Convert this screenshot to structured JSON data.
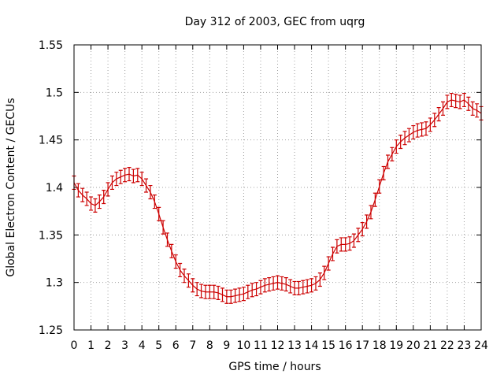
{
  "chart_data": {
    "type": "line",
    "title": "Day 312 of 2003, GEC from uqrg",
    "xlabel": "GPS time / hours",
    "ylabel": "Global Electron Content / GECUs",
    "xlim": [
      0,
      24
    ],
    "ylim": [
      1.25,
      1.55
    ],
    "x_ticks": [
      "0",
      "1",
      "2",
      "3",
      "4",
      "5",
      "6",
      "7",
      "8",
      "9",
      "10",
      "11",
      "12",
      "13",
      "14",
      "15",
      "16",
      "17",
      "18",
      "19",
      "20",
      "21",
      "22",
      "23",
      "24"
    ],
    "y_ticks": [
      "1.25",
      "1.3",
      "1.35",
      "1.4",
      "1.45",
      "1.5",
      "1.55"
    ],
    "grid": true,
    "series_color": "#cc0000",
    "error_half_width": 0.007,
    "series": [
      {
        "x": [
          0,
          0.25,
          0.5,
          0.75,
          1,
          1.25,
          1.5,
          1.75,
          2,
          2.25,
          2.5,
          2.75,
          3,
          3.25,
          3.5,
          3.75,
          4,
          4.25,
          4.5,
          4.75,
          5,
          5.25,
          5.5,
          5.75,
          6,
          6.25,
          6.5,
          6.75,
          7,
          7.25,
          7.5,
          7.75,
          8,
          8.25,
          8.5,
          8.75,
          9,
          9.25,
          9.5,
          9.75,
          10,
          10.25,
          10.5,
          10.75,
          11,
          11.25,
          11.5,
          11.75,
          12,
          12.25,
          12.5,
          12.75,
          13,
          13.25,
          13.5,
          13.75,
          14,
          14.25,
          14.5,
          14.75,
          15,
          15.25,
          15.5,
          15.75,
          16,
          16.25,
          16.5,
          16.75,
          17,
          17.25,
          17.5,
          17.75,
          18,
          18.25,
          18.5,
          18.75,
          19,
          19.25,
          19.5,
          19.75,
          20,
          20.25,
          20.5,
          20.75,
          21,
          21.25,
          21.5,
          21.75,
          22,
          22.25,
          22.5,
          22.75,
          23,
          23.25,
          23.5,
          23.75,
          24
        ],
        "y": [
          1.405,
          1.397,
          1.392,
          1.388,
          1.383,
          1.381,
          1.385,
          1.39,
          1.398,
          1.405,
          1.409,
          1.411,
          1.413,
          1.414,
          1.412,
          1.413,
          1.409,
          1.402,
          1.395,
          1.385,
          1.372,
          1.358,
          1.345,
          1.333,
          1.322,
          1.313,
          1.307,
          1.302,
          1.297,
          1.293,
          1.291,
          1.29,
          1.29,
          1.29,
          1.289,
          1.287,
          1.285,
          1.285,
          1.286,
          1.287,
          1.288,
          1.29,
          1.292,
          1.293,
          1.295,
          1.297,
          1.298,
          1.299,
          1.3,
          1.299,
          1.298,
          1.296,
          1.294,
          1.294,
          1.295,
          1.296,
          1.297,
          1.299,
          1.303,
          1.31,
          1.32,
          1.33,
          1.338,
          1.34,
          1.34,
          1.341,
          1.344,
          1.35,
          1.356,
          1.364,
          1.374,
          1.387,
          1.401,
          1.415,
          1.427,
          1.435,
          1.443,
          1.448,
          1.452,
          1.455,
          1.458,
          1.46,
          1.461,
          1.462,
          1.466,
          1.471,
          1.477,
          1.483,
          1.49,
          1.492,
          1.491,
          1.49,
          1.492,
          1.488,
          1.483,
          1.481,
          1.478
        ]
      }
    ]
  }
}
